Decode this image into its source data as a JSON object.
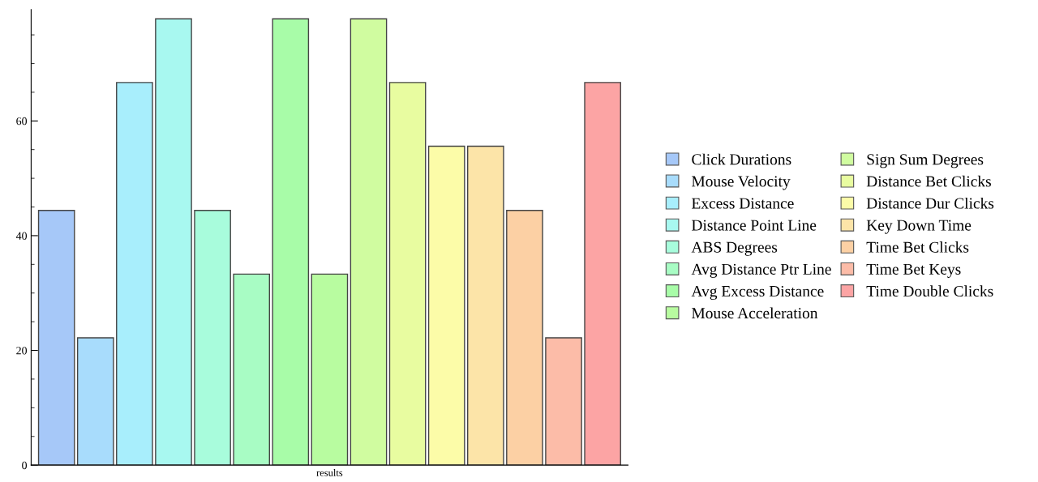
{
  "chart_data": {
    "type": "bar",
    "categories": [
      "results"
    ],
    "ylim": [
      0,
      79.4
    ],
    "yticks": [
      0,
      20,
      40,
      60
    ],
    "grid": false,
    "legend": "right",
    "series": [
      {
        "name": "Click Durations",
        "color": "#a6c8f8",
        "values": [
          44.4
        ]
      },
      {
        "name": "Mouse Velocity",
        "color": "#a8dcfc",
        "values": [
          22.2
        ]
      },
      {
        "name": "Excess Distance",
        "color": "#a8eefc",
        "values": [
          66.7
        ]
      },
      {
        "name": "Distance Point Line",
        "color": "#a8f8f0",
        "values": [
          77.8
        ]
      },
      {
        "name": "ABS Degrees",
        "color": "#a8fcdc",
        "values": [
          44.4
        ]
      },
      {
        "name": "Avg Distance Ptr Line",
        "color": "#a8fcc4",
        "values": [
          33.3
        ]
      },
      {
        "name": "Avg Excess Distance",
        "color": "#a8fca8",
        "values": [
          77.8
        ]
      },
      {
        "name": "Mouse Acceleration",
        "color": "#b8fca0",
        "values": [
          33.3
        ]
      },
      {
        "name": "Sign Sum Degrees",
        "color": "#d0fca0",
        "values": [
          77.8
        ]
      },
      {
        "name": "Distance Bet Clicks",
        "color": "#e8fca0",
        "values": [
          66.7
        ]
      },
      {
        "name": "Distance Dur Clicks",
        "color": "#fcfca8",
        "values": [
          55.6
        ]
      },
      {
        "name": "Key Down Time",
        "color": "#fce4a8",
        "values": [
          55.6
        ]
      },
      {
        "name": "Time Bet Clicks",
        "color": "#fcd0a4",
        "values": [
          44.4
        ]
      },
      {
        "name": "Time Bet Keys",
        "color": "#fcbca8",
        "values": [
          22.2
        ]
      },
      {
        "name": "Time Double Clicks",
        "color": "#fca4a4",
        "values": [
          66.7
        ]
      }
    ]
  }
}
